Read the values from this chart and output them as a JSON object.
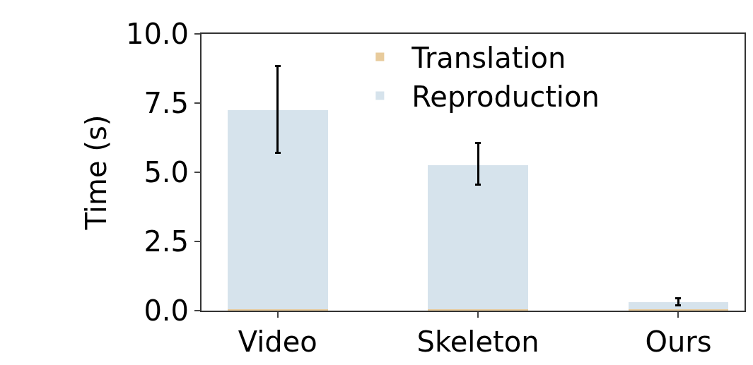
{
  "chart_data": {
    "type": "bar",
    "stacked": true,
    "ylabel": "Time (s)",
    "categories": [
      "Video",
      "Skeleton",
      "Ours"
    ],
    "series": [
      {
        "name": "Translation",
        "color": "#e8cb9c",
        "values": [
          0.05,
          0.05,
          0.05
        ]
      },
      {
        "name": "Reproduction",
        "color": "#d6e3ec",
        "values": [
          7.2,
          5.2,
          0.25
        ],
        "errors": [
          [
            5.7,
            8.85
          ],
          [
            4.55,
            6.05
          ],
          [
            0.2,
            0.45
          ]
        ]
      }
    ],
    "ylim": [
      0,
      10
    ],
    "yticks": [
      {
        "value": 0,
        "label": "0.0"
      },
      {
        "value": 2.5,
        "label": "2.5"
      },
      {
        "value": 5,
        "label": "5.0"
      },
      {
        "value": 7.5,
        "label": "7.5"
      },
      {
        "value": 10,
        "label": "10.0"
      }
    ],
    "legend": "top right"
  }
}
